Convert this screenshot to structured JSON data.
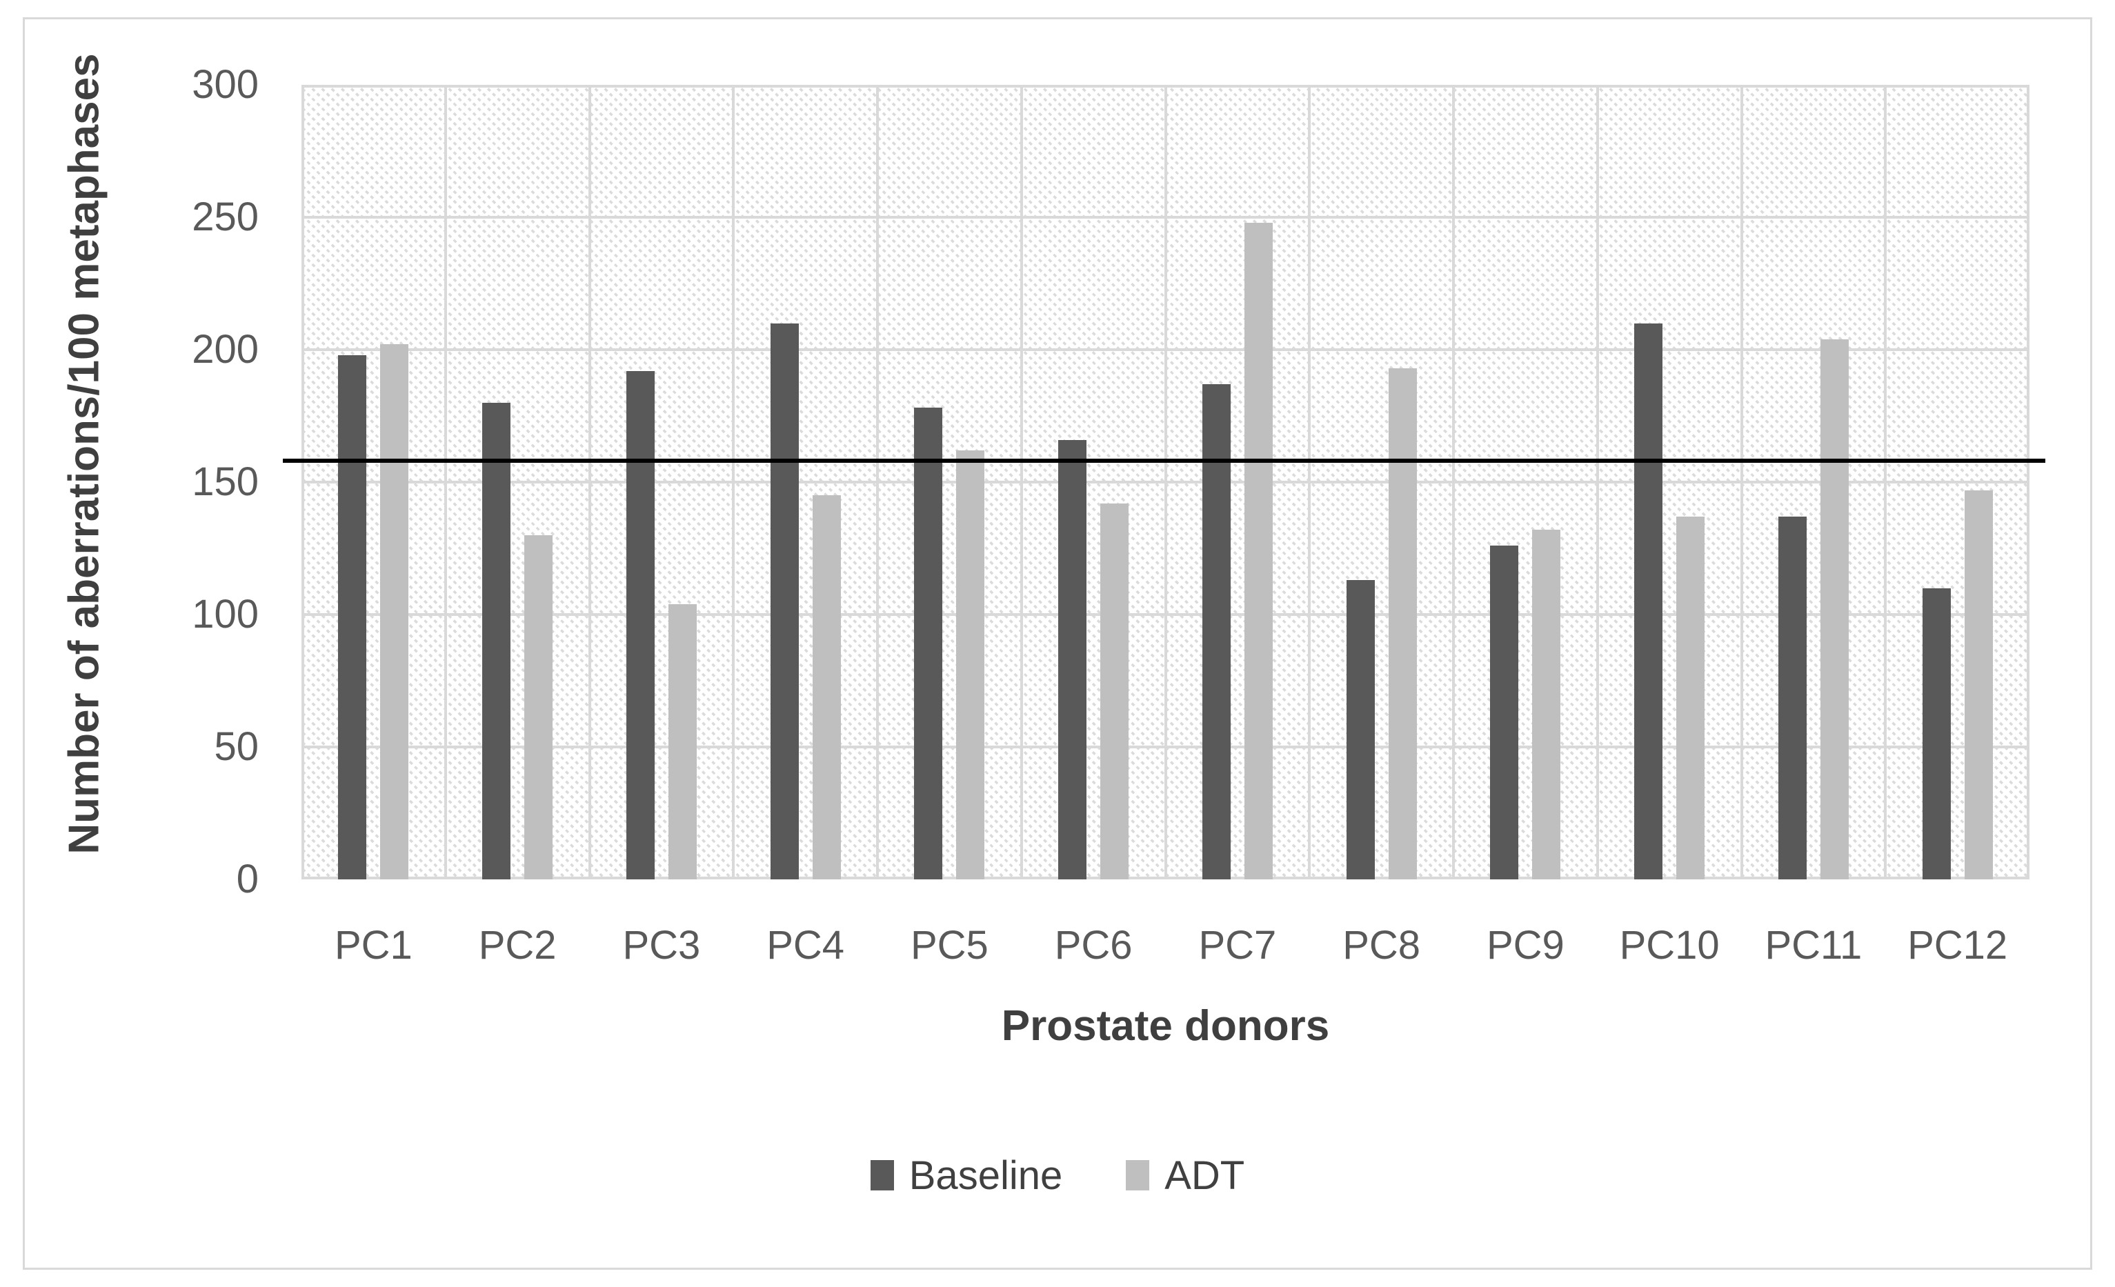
{
  "figure": {
    "border_color": "#d9d9d9",
    "background": "#ffffff"
  },
  "chart_data": {
    "type": "bar",
    "title": "",
    "xlabel": "Prostate donors",
    "ylabel": "Number of aberrations/100 metaphases",
    "categories": [
      "PC1",
      "PC2",
      "PC3",
      "PC4",
      "PC5",
      "PC6",
      "PC7",
      "PC8",
      "PC9",
      "PC10",
      "PC11",
      "PC12"
    ],
    "series": [
      {
        "name": "Baseline",
        "color": "#595959",
        "values": [
          198,
          180,
          192,
          210,
          178,
          166,
          187,
          113,
          126,
          210,
          137,
          110
        ]
      },
      {
        "name": "ADT",
        "color": "#bfbfbf",
        "values": [
          202,
          130,
          104,
          145,
          162,
          142,
          248,
          193,
          132,
          137,
          204,
          147
        ]
      }
    ],
    "ylim": [
      0,
      300
    ],
    "ytick_interval": 50,
    "yticks": [
      "0",
      "50",
      "100",
      "150",
      "200",
      "250",
      "300"
    ],
    "reference_line": {
      "value": 158,
      "color": "#000000"
    },
    "gridline_color": "#d9d9d9",
    "grid": true,
    "legend_position": "bottom",
    "plot_background": "diagonal-hatch"
  }
}
